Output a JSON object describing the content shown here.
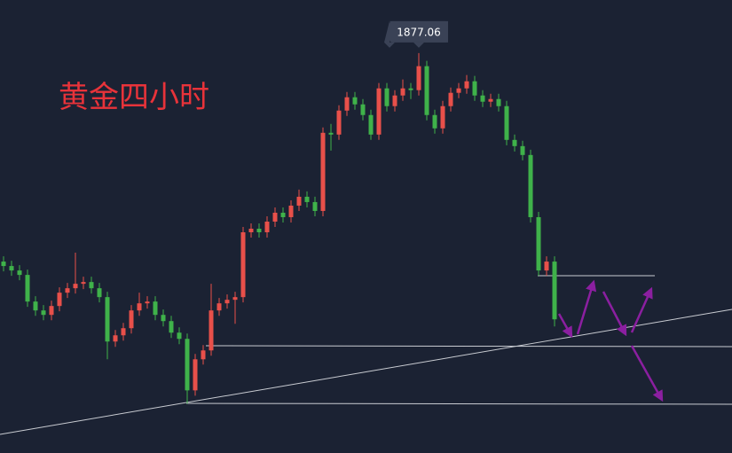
{
  "chart_data": {
    "type": "candlestick",
    "title": "黄金四小时",
    "up_color": "#e8504a",
    "down_color": "#3fb24a",
    "ylim": [
      1787,
      1889
    ],
    "open": [
      1830.1,
      1829.1,
      1828.1,
      1827.1,
      1821.1,
      1819.1,
      1818.1,
      1820.1,
      1823.1,
      1824.1,
      1825.1,
      1825.5,
      1824.1,
      1822.1,
      1812.1,
      1813.5,
      1815.1,
      1819.1,
      1820.7,
      1821.1,
      1818.1,
      1816.7,
      1814.1,
      1812.7,
      1801.1,
      1808.1,
      1810.1,
      1819.1,
      1820.7,
      1821.5,
      1822.1,
      1836.7,
      1837.5,
      1836.7,
      1839.1,
      1841.1,
      1840.1,
      1842.7,
      1844.7,
      1843.5,
      1841.5,
      1859.1,
      1858.7,
      1864.1,
      1867.1,
      1865.5,
      1863.1,
      1858.7,
      1869.1,
      1865.1,
      1867.5,
      1869.1,
      1868.7,
      1874.1,
      1863.1,
      1860.1,
      1865.1,
      1868.1,
      1869.1,
      1870.7,
      1867.5,
      1866.1,
      1866.7,
      1865.1,
      1857.5,
      1856.1,
      1854.1,
      1840.1,
      1828.1,
      1830.1
    ],
    "high": [
      1831.3,
      1830.3,
      1829.3,
      1828.3,
      1822.3,
      1820.3,
      1821.3,
      1824.3,
      1825.3,
      1832.1,
      1826.7,
      1826.7,
      1825.3,
      1823.3,
      1814.7,
      1816.3,
      1820.3,
      1823.1,
      1822.3,
      1822.3,
      1819.3,
      1817.9,
      1815.3,
      1813.9,
      1809.3,
      1811.3,
      1825.1,
      1821.9,
      1822.7,
      1823.3,
      1837.9,
      1838.7,
      1838.7,
      1840.3,
      1842.3,
      1842.3,
      1843.9,
      1846.3,
      1845.9,
      1844.7,
      1860.3,
      1861.1,
      1865.3,
      1868.3,
      1868.3,
      1866.7,
      1864.3,
      1870.3,
      1870.3,
      1868.7,
      1871.1,
      1870.3,
      1877.06,
      1875.3,
      1864.3,
      1866.3,
      1869.3,
      1870.3,
      1872.1,
      1871.9,
      1868.7,
      1867.9,
      1867.9,
      1866.3,
      1858.7,
      1857.3,
      1855.3,
      1841.3,
      1831.3,
      1831.3
    ],
    "low": [
      1827.9,
      1826.9,
      1825.9,
      1819.9,
      1817.9,
      1816.9,
      1816.9,
      1818.9,
      1821.9,
      1822.9,
      1823.9,
      1822.9,
      1820.9,
      1808.1,
      1810.9,
      1812.3,
      1813.9,
      1817.9,
      1819.5,
      1816.9,
      1815.5,
      1812.9,
      1811.5,
      1798.1,
      1799.9,
      1806.9,
      1808.9,
      1817.9,
      1819.5,
      1816.1,
      1820.9,
      1835.5,
      1835.5,
      1835.5,
      1837.9,
      1838.9,
      1838.9,
      1841.5,
      1842.3,
      1840.3,
      1840.3,
      1855.1,
      1857.5,
      1862.9,
      1864.3,
      1861.9,
      1857.5,
      1857.5,
      1863.9,
      1863.9,
      1866.3,
      1866.7,
      1867.5,
      1861.9,
      1858.9,
      1858.9,
      1863.9,
      1866.9,
      1867.9,
      1866.3,
      1864.9,
      1864.9,
      1863.9,
      1856.3,
      1854.9,
      1852.9,
      1838.9,
      1826.9,
      1826.9,
      1815.5
    ],
    "close": [
      1829.1,
      1828.1,
      1827.1,
      1821.1,
      1819.1,
      1818.1,
      1820.1,
      1823.1,
      1824.1,
      1825.1,
      1825.5,
      1824.1,
      1822.1,
      1812.1,
      1813.5,
      1815.1,
      1819.1,
      1820.7,
      1821.1,
      1818.1,
      1816.7,
      1814.1,
      1812.7,
      1801.1,
      1808.1,
      1810.1,
      1819.1,
      1820.7,
      1821.5,
      1822.1,
      1836.7,
      1837.5,
      1836.7,
      1839.1,
      1841.1,
      1840.1,
      1842.7,
      1844.7,
      1843.5,
      1841.5,
      1859.1,
      1858.7,
      1864.1,
      1867.1,
      1865.5,
      1863.1,
      1858.7,
      1869.1,
      1865.1,
      1867.5,
      1869.1,
      1868.7,
      1874.1,
      1863.1,
      1860.1,
      1865.1,
      1868.1,
      1869.1,
      1870.7,
      1867.5,
      1866.1,
      1866.7,
      1865.1,
      1857.5,
      1856.1,
      1854.1,
      1840.1,
      1828.1,
      1830.1,
      1817.1
    ]
  }
}
